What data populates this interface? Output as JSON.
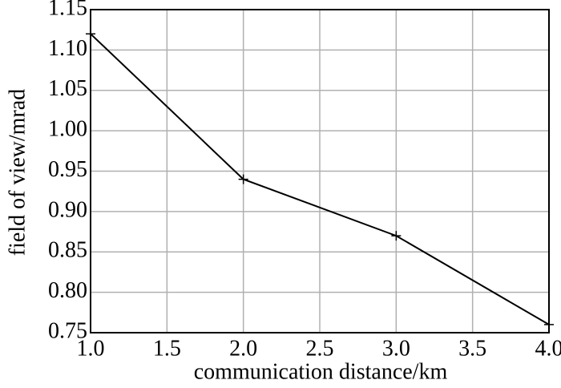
{
  "chart_data": {
    "type": "line",
    "xlabel": "communication distance/km",
    "ylabel": "field of view/mrad",
    "x": [
      1,
      2,
      3,
      4
    ],
    "values": [
      1.12,
      0.94,
      0.87,
      0.76
    ],
    "color": "#000000",
    "xlim": [
      1,
      4
    ],
    "xticks": [
      {
        "value": 1,
        "label": "1.0"
      },
      1.5,
      {
        "value": 2,
        "label": "2.0"
      },
      2.5,
      {
        "value": 3,
        "label": "3.0"
      },
      3.5,
      {
        "value": 4,
        "label": "4.0"
      }
    ],
    "ylim": [
      0.75,
      1.15
    ],
    "yticks": [
      0.75,
      {
        "value": 0.8,
        "label": "0.80"
      },
      0.85,
      {
        "value": 0.9,
        "label": "0.90"
      },
      0.95,
      {
        "value": 1,
        "label": "1.00"
      },
      1.05,
      {
        "value": 1.1,
        "label": "1.10"
      },
      1.15
    ],
    "grid": true
  }
}
